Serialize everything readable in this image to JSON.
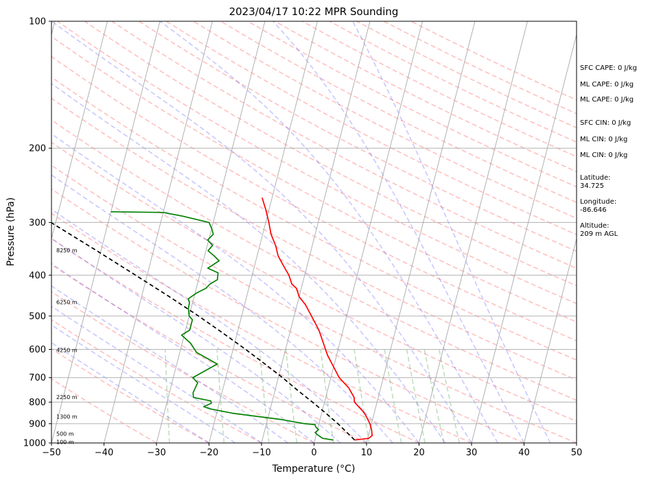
{
  "chart_data": {
    "type": "line",
    "title": "2023/04/17 10:22 MPR Sounding",
    "xlabel": "Temperature (°C)",
    "ylabel": "Pressure (hPa)",
    "xlim": [
      -50,
      50
    ],
    "ylim": [
      1000,
      100
    ],
    "y_scale": "log",
    "x_ticks": [
      "−50",
      "−40",
      "−30",
      "−20",
      "−10",
      "0",
      "10",
      "20",
      "30",
      "40",
      "50"
    ],
    "x_tick_values": [
      -50,
      -40,
      -30,
      -20,
      -10,
      0,
      10,
      20,
      30,
      40,
      50
    ],
    "y_ticks": [
      "1000",
      "900",
      "800",
      "700",
      "600",
      "500",
      "400",
      "300",
      "200",
      "100"
    ],
    "y_tick_values": [
      1000,
      900,
      800,
      700,
      600,
      500,
      400,
      300,
      200,
      100
    ],
    "grid": true,
    "series": [
      {
        "color": "#ff0000",
        "pressure": [
          984,
          975,
          960,
          930,
          900,
          860,
          840,
          820,
          800,
          780,
          740,
          700,
          660,
          620,
          580,
          540,
          500,
          470,
          450,
          430,
          420,
          400,
          380,
          360,
          340,
          320,
          300,
          280,
          262
        ],
        "values": [
          7.6,
          10.2,
          10.7,
          10.3,
          9.7,
          8.5,
          7.7,
          6.7,
          5.7,
          5.4,
          3.9,
          1.6,
          0.0,
          -1.7,
          -3.1,
          -4.6,
          -6.7,
          -8.4,
          -10.0,
          -10.9,
          -12.0,
          -13.0,
          -14.5,
          -16.0,
          -17.0,
          -18.4,
          -19.4,
          -20.6,
          -21.9
        ]
      },
      {
        "color": "#008000",
        "pressure": [
          984,
          975,
          955,
          945,
          930,
          915,
          905,
          900,
          880,
          850,
          830,
          820,
          805,
          795,
          780,
          760,
          720,
          700,
          650,
          610,
          580,
          555,
          540,
          510,
          500,
          480,
          465,
          455,
          440,
          430,
          420,
          410,
          395,
          385,
          370,
          360,
          350,
          340,
          330,
          320,
          310,
          300,
          290,
          284,
          283
        ],
        "values": [
          3.5,
          1.4,
          0.2,
          -0.3,
          0.2,
          -0.5,
          -0.7,
          -2.7,
          -7.3,
          -17.0,
          -21.5,
          -22.8,
          -21.5,
          -21.7,
          -25.2,
          -25.5,
          -25.1,
          -26.3,
          -22.3,
          -26.8,
          -28.4,
          -30.5,
          -29.2,
          -29.2,
          -30.0,
          -30.5,
          -30.6,
          -31.0,
          -29.6,
          -28.2,
          -27.6,
          -26.4,
          -26.6,
          -28.8,
          -27.0,
          -28.2,
          -29.6,
          -29.0,
          -30.2,
          -29.4,
          -30.0,
          -30.8,
          -36.0,
          -40.0,
          -50.0
        ]
      },
      {
        "color": "#000000",
        "dashed": true,
        "pressure": [
          984,
          900,
          850,
          800,
          750,
          700,
          650,
          600,
          550,
          500,
          450,
          400,
          350,
          300,
          262
        ],
        "values": [
          7.6,
          3.6,
          0.8,
          -2.3,
          -5.7,
          -9.2,
          -13.2,
          -17.6,
          -22.6,
          -28.2,
          -34.7,
          -42.2,
          -50.8,
          -60.9,
          -69.9
        ]
      }
    ],
    "reference_lines": [
      {
        "color": "#ff0000",
        "style": "dashed"
      },
      {
        "color": "#0000ff",
        "style": "dashed"
      },
      {
        "color": "#008000",
        "style": "dashed"
      },
      {
        "color": "#888888",
        "style": "solid"
      }
    ],
    "height_annotations": [
      {
        "label": "100 m",
        "pressure": 994
      },
      {
        "label": "500 m",
        "pressure": 950
      },
      {
        "label": "1300 m",
        "pressure": 865
      },
      {
        "label": "2250 m",
        "pressure": 778
      },
      {
        "label": "4250 m",
        "pressure": 602
      },
      {
        "label": "6250 m",
        "pressure": 463
      },
      {
        "label": "8250 m",
        "pressure": 349
      }
    ],
    "indices": [
      {
        "label": "SFC CAPE: 0 J/kg"
      },
      {
        "label": "ML CAPE: 0 J/kg"
      },
      {
        "label": "ML CAPE: 0 J/kg"
      },
      {
        "label": "SFC CIN: 0 J/kg"
      },
      {
        "label": "ML CIN: 0 J/kg"
      },
      {
        "label": "ML CIN: 0 J/kg"
      }
    ],
    "location": {
      "latitude_label": "Latitude:",
      "latitude_value": "34.725",
      "longitude_label": "Longitude:",
      "longitude_value": "-86.646",
      "altitude_label": "Altitude:",
      "altitude_value": "209 m AGL"
    }
  }
}
